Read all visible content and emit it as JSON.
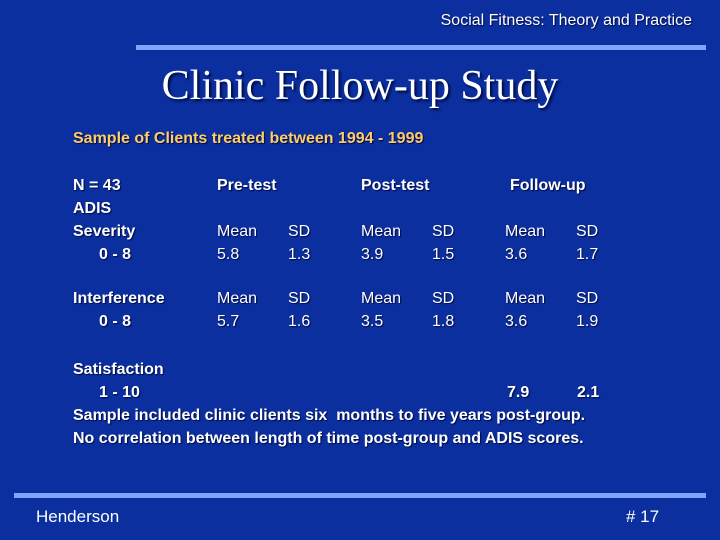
{
  "header": {
    "course_title": "Social Fitness: Theory and Practice"
  },
  "slide": {
    "title": "Clinic Follow-up Study",
    "subtitle": "Sample of Clients treated between 1994 - 1999",
    "table": {
      "n_label": "N = 43",
      "columns": [
        "Pre-test",
        "Post-test",
        "Follow-up"
      ],
      "adis_label": "ADIS",
      "rows": [
        {
          "label": "Severity",
          "range": "0 - 8",
          "cells": [
            {
              "mean_label": "Mean",
              "mean": "5.8",
              "sd_label": "SD",
              "sd": "1.3"
            },
            {
              "mean_label": "Mean",
              "mean": "3.9",
              "sd_label": "SD",
              "sd": "1.5"
            },
            {
              "mean_label": "Mean",
              "mean": "3.6",
              "sd_label": "SD",
              "sd": "1.7"
            }
          ]
        },
        {
          "label": "Interference",
          "range": "0 - 8",
          "cells": [
            {
              "mean_label": "Mean",
              "mean": "5.7",
              "sd_label": "SD",
              "sd": "1.6"
            },
            {
              "mean_label": "Mean",
              "mean": "3.5",
              "sd_label": "SD",
              "sd": "1.8"
            },
            {
              "mean_label": "Mean",
              "mean": "3.6",
              "sd_label": "SD",
              "sd": "1.9"
            }
          ]
        }
      ],
      "satisfaction": {
        "label": "Satisfaction",
        "range": "1 - 10",
        "followup_mean": "7.9",
        "followup_sd": "2.1"
      }
    },
    "notes": [
      "Sample included clinic clients six  months to five years post-group.",
      "No correlation between length of time post-group and ADIS scores."
    ]
  },
  "footer": {
    "author": "Henderson",
    "slide_number": "# 17"
  },
  "colors": {
    "background": "#0b2f9e",
    "rule": "#7fa6ff",
    "subtitle": "#ffcc66",
    "text": "#ffffff"
  }
}
